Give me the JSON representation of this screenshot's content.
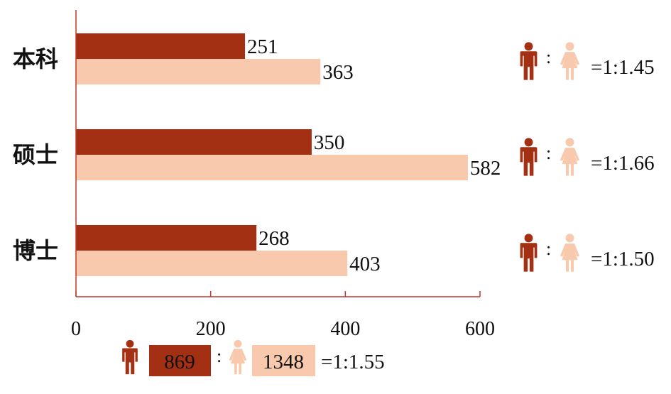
{
  "colors": {
    "male": "#a33012",
    "female": "#f8c9ad",
    "axis": "#c0392b"
  },
  "icons": {
    "male": "male-person-icon",
    "female": "female-person-icon"
  },
  "chart_data": {
    "type": "bar",
    "orientation": "horizontal",
    "categories": [
      "本科",
      "硕士",
      "博士"
    ],
    "series": [
      {
        "values": [
          251,
          350,
          268
        ]
      },
      {
        "values": [
          363,
          582,
          403
        ]
      }
    ],
    "xlim": [
      0,
      600
    ],
    "xticks": [
      "0",
      "200",
      "400",
      "600"
    ],
    "ratios": [
      "=1:1.45",
      "=1:1.66",
      "=1:1.50"
    ],
    "total": {
      "male": "869",
      "female": "1348",
      "ratio": "=1:1.55"
    }
  }
}
